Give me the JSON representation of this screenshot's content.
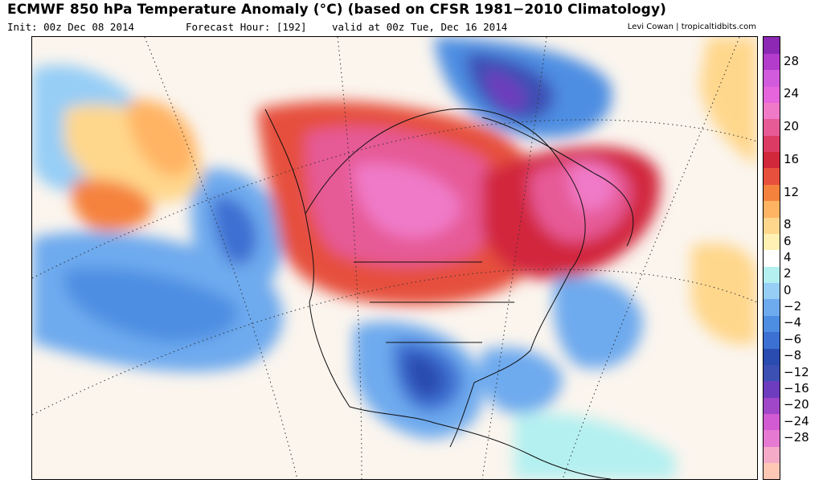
{
  "header": {
    "title": "ECMWF 850 hPa Temperature Anomaly (°C) (based on CFSR 1981−2010 Climatology)",
    "init": "Init: 00z Dec 08 2014",
    "forecast_hour": "Forecast Hour: [192]",
    "valid": "valid at 00z Tue, Dec 16 2014",
    "credit": "Levi Cowan | tropicaltidbits.com"
  },
  "legend": {
    "unit": "°C",
    "colors": [
      "#ffc8b4",
      "#f5aac8",
      "#e67ad2",
      "#d25ad2",
      "#a046c8",
      "#6e3cbe",
      "#3c50b4",
      "#2a4cb0",
      "#3c70d2",
      "#4e8ee2",
      "#6eaaee",
      "#96cef6",
      "#b4f0f0",
      "#ffffff",
      "#fff0b4",
      "#ffd78c",
      "#ffb464",
      "#f5823c",
      "#e6503c",
      "#d2283c",
      "#dc3c64",
      "#e65a96",
      "#f07ac8",
      "#e664dc",
      "#d25adc",
      "#b43ccc",
      "#8c28b4"
    ],
    "labels": [
      {
        "text": "28",
        "row": 1
      },
      {
        "text": "24",
        "row": 3
      },
      {
        "text": "20",
        "row": 5
      },
      {
        "text": "16",
        "row": 7
      },
      {
        "text": "12",
        "row": 9
      },
      {
        "text": "8",
        "row": 11
      },
      {
        "text": "6",
        "row": 12
      },
      {
        "text": "4",
        "row": 13
      },
      {
        "text": "2",
        "row": 14
      },
      {
        "text": "0",
        "row": 15
      },
      {
        "text": "−2",
        "row": 16
      },
      {
        "text": "−4",
        "row": 17
      },
      {
        "text": "−6",
        "row": 18
      },
      {
        "text": "−8",
        "row": 19
      },
      {
        "text": "−12",
        "row": 20
      },
      {
        "text": "−16",
        "row": 21
      },
      {
        "text": "−20",
        "row": 22
      },
      {
        "text": "−24",
        "row": 23
      },
      {
        "text": "−28",
        "row": 24
      }
    ]
  },
  "map": {
    "region": "North America",
    "field": "850 hPa temperature anomaly",
    "features": [
      {
        "name": "canada-warm-anomaly",
        "category": "warm"
      },
      {
        "name": "quebec-warm-anomaly",
        "category": "warm"
      },
      {
        "name": "greenland-cold-anomaly",
        "category": "cold"
      },
      {
        "name": "texas-cold-anomaly",
        "category": "cold"
      },
      {
        "name": "north-pacific-cold-anomaly",
        "category": "cold"
      },
      {
        "name": "gulf-of-alaska-cold-anomaly",
        "category": "cold"
      },
      {
        "name": "western-atlantic-cold-anomaly",
        "category": "cold"
      },
      {
        "name": "north-pacific-warm-anomaly",
        "category": "warm"
      }
    ]
  }
}
